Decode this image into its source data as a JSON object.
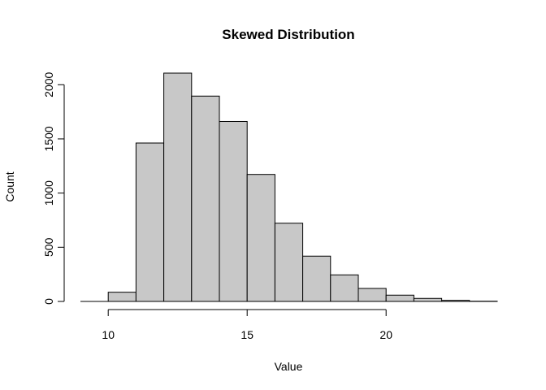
{
  "chart_data": {
    "type": "bar",
    "title": "Skewed Distribution",
    "xlabel": "Value",
    "ylabel": "Count",
    "bin_edges": [
      10,
      11,
      12,
      13,
      14,
      15,
      16,
      17,
      18,
      19,
      20,
      21,
      22,
      23,
      24
    ],
    "values": [
      85,
      1462,
      2107,
      1895,
      1661,
      1172,
      722,
      418,
      245,
      120,
      58,
      28,
      10,
      2
    ],
    "xlim": [
      9,
      24
    ],
    "ylim": [
      0,
      2107
    ],
    "x_ticks": [
      10,
      15,
      20
    ],
    "y_ticks": [
      0,
      500,
      1000,
      1500,
      2000
    ],
    "bar_fill": "#c8c8c8",
    "bar_stroke": "#000000",
    "grid": false,
    "legend": "none"
  }
}
